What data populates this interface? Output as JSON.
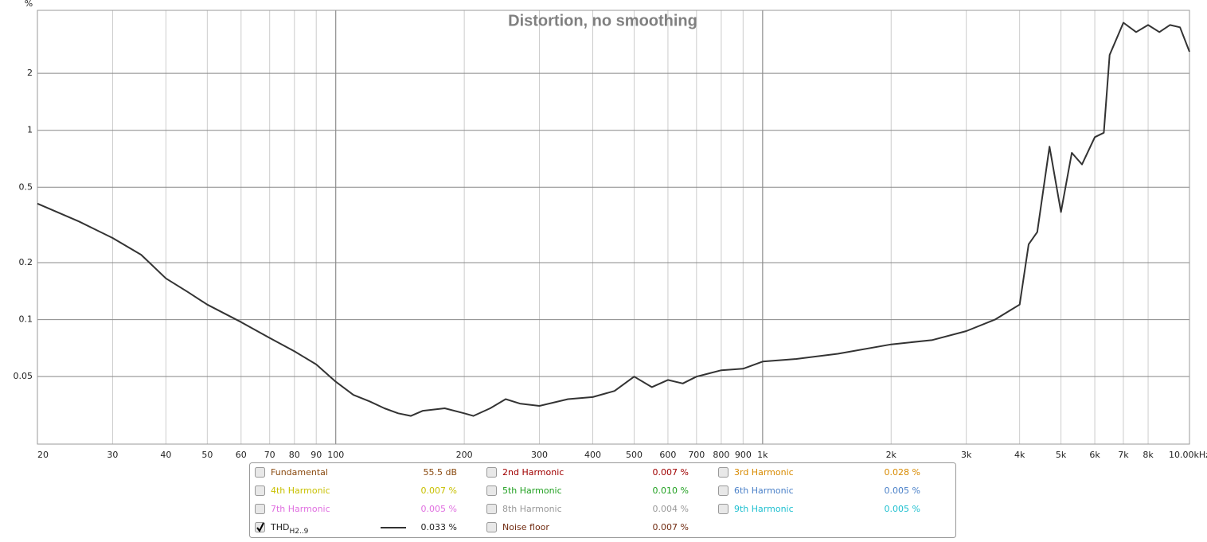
{
  "chart_data": {
    "type": "line",
    "title": "Distortion, no smoothing",
    "y_unit": "%",
    "log_x": true,
    "log_y": true,
    "grid": true,
    "xlim": [
      20,
      10000
    ],
    "ylim": [
      0.022,
      4.3
    ],
    "xticks": [
      20,
      30,
      40,
      50,
      60,
      70,
      80,
      90,
      100,
      200,
      300,
      400,
      500,
      600,
      700,
      800,
      900,
      {
        "value": 1000,
        "label": "1k"
      },
      {
        "value": 2000,
        "label": "2k"
      },
      {
        "value": 3000,
        "label": "3k"
      },
      {
        "value": 4000,
        "label": "4k"
      },
      {
        "value": 5000,
        "label": "5k"
      },
      {
        "value": 6000,
        "label": "6k"
      },
      {
        "value": 7000,
        "label": "7k"
      },
      {
        "value": 8000,
        "label": "8k"
      },
      {
        "value": 10000,
        "label": "10.00kHz"
      }
    ],
    "yticks": [
      0.05,
      0.1,
      0.2,
      0.5,
      1,
      2
    ],
    "x": [
      20,
      25,
      30,
      35,
      40,
      45,
      50,
      60,
      70,
      80,
      90,
      100,
      110,
      120,
      130,
      140,
      150,
      160,
      180,
      200,
      210,
      230,
      250,
      270,
      300,
      350,
      400,
      450,
      500,
      550,
      600,
      650,
      700,
      800,
      900,
      1000,
      1200,
      1500,
      2000,
      2500,
      3000,
      3500,
      4000,
      4200,
      4400,
      4700,
      5000,
      5300,
      5600,
      6000,
      6300,
      6500,
      7000,
      7500,
      8000,
      8500,
      9000,
      9500,
      10000
    ],
    "series": [
      {
        "name": "THD",
        "name_sub": "H2..9",
        "reading": "0.033 %",
        "color": "#333333",
        "checked": true,
        "values": [
          0.41,
          0.33,
          0.27,
          0.22,
          0.165,
          0.14,
          0.12,
          0.097,
          0.08,
          0.068,
          0.058,
          0.047,
          0.04,
          0.037,
          0.034,
          0.032,
          0.031,
          0.033,
          0.034,
          0.032,
          0.031,
          0.034,
          0.038,
          0.036,
          0.035,
          0.038,
          0.039,
          0.042,
          0.05,
          0.044,
          0.048,
          0.046,
          0.05,
          0.054,
          0.055,
          0.06,
          0.062,
          0.066,
          0.074,
          0.078,
          0.087,
          0.1,
          0.12,
          0.25,
          0.29,
          0.82,
          0.37,
          0.76,
          0.66,
          0.92,
          0.97,
          2.5,
          3.7,
          3.3,
          3.6,
          3.3,
          3.6,
          3.5,
          2.6
        ]
      }
    ],
    "legend": [
      {
        "name": "Fundamental",
        "reading": "55.5 dB",
        "color": "#8a4a10",
        "checked": false
      },
      {
        "name": "2nd Harmonic",
        "reading": "0.007 %",
        "color": "#a00000",
        "checked": false
      },
      {
        "name": "3rd Harmonic",
        "reading": "0.028 %",
        "color": "#d88a00",
        "checked": false
      },
      {
        "name": "4th Harmonic",
        "reading": "0.007 %",
        "color": "#c8c000",
        "checked": false
      },
      {
        "name": "5th Harmonic",
        "reading": "0.010 %",
        "color": "#20a020",
        "checked": false
      },
      {
        "name": "6th Harmonic",
        "reading": "0.005 %",
        "color": "#4a80c8",
        "checked": false
      },
      {
        "name": "7th Harmonic",
        "reading": "0.005 %",
        "color": "#e070e0",
        "checked": false
      },
      {
        "name": "8th Harmonic",
        "reading": "0.004 %",
        "color": "#999999",
        "checked": false
      },
      {
        "name": "9th Harmonic",
        "reading": "0.005 %",
        "color": "#20c0d0",
        "checked": false
      },
      {
        "name": "Noise floor",
        "reading": "0.007 %",
        "color": "#702a10",
        "checked": false
      }
    ]
  }
}
